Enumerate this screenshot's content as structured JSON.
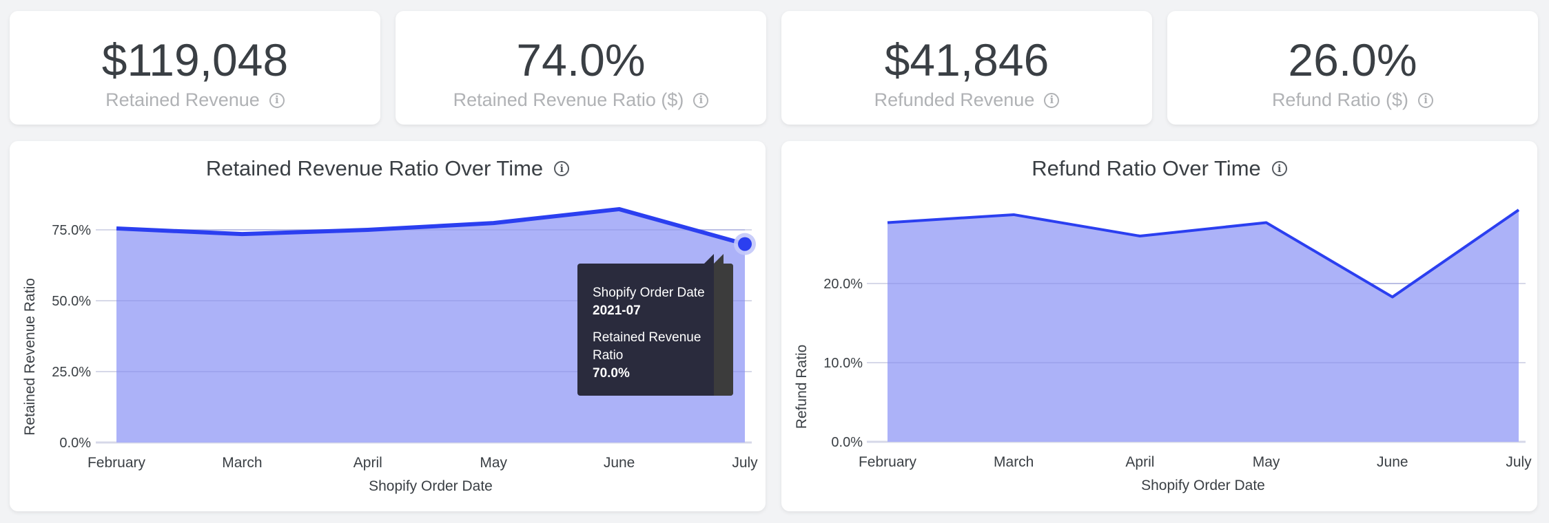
{
  "kpis": [
    {
      "value": "$119,048",
      "label": "Retained Revenue",
      "icon": "info-icon"
    },
    {
      "value": "74.0%",
      "label": "Retained Revenue Ratio ($)",
      "icon": "info-icon"
    },
    {
      "value": "$41,846",
      "label": "Refunded Revenue",
      "icon": "info-icon"
    },
    {
      "value": "26.0%",
      "label": "Refund Ratio ($)",
      "icon": "info-icon"
    }
  ],
  "colors": {
    "line": "#2b3ff0",
    "area": "#a8aef8",
    "grid": "#d6d8e8",
    "text": "#3a3f44",
    "muted": "#b0b2b5"
  },
  "chart_data": [
    {
      "type": "area",
      "title": "Retained Revenue Ratio Over Time",
      "xlabel": "Shopify Order Date",
      "ylabel": "Retained Revenue Ratio",
      "categories": [
        "February",
        "March",
        "April",
        "May",
        "June",
        "July"
      ],
      "series": [
        {
          "name": "Retained Revenue Ratio",
          "values": [
            75.5,
            73.5,
            75.0,
            77.4,
            82.3,
            70.0
          ]
        }
      ],
      "ylim": [
        0,
        75
      ],
      "yticks": [
        "0.0%",
        "25.0%",
        "50.0%",
        "75.0%"
      ],
      "ytick_values": [
        0,
        25,
        50,
        75
      ],
      "grid": true,
      "legend": "none",
      "tooltip": {
        "x_label": "Shopify Order Date",
        "x_value": "2021-07",
        "y_label": "Retained Revenue Ratio",
        "y_value": "70.0%",
        "point_index": 5
      }
    },
    {
      "type": "area",
      "title": "Refund Ratio Over Time",
      "xlabel": "Shopify Order Date",
      "ylabel": "Refund Ratio",
      "categories": [
        "February",
        "March",
        "April",
        "May",
        "June",
        "July"
      ],
      "series": [
        {
          "name": "Refund Ratio",
          "values": [
            27.7,
            28.7,
            26.0,
            27.7,
            18.3,
            29.3
          ]
        }
      ],
      "ylim": [
        0,
        20
      ],
      "yticks": [
        "0.0%",
        "10.0%",
        "20.0%"
      ],
      "ytick_values": [
        0,
        10,
        20
      ],
      "grid": true,
      "legend": "none"
    }
  ]
}
